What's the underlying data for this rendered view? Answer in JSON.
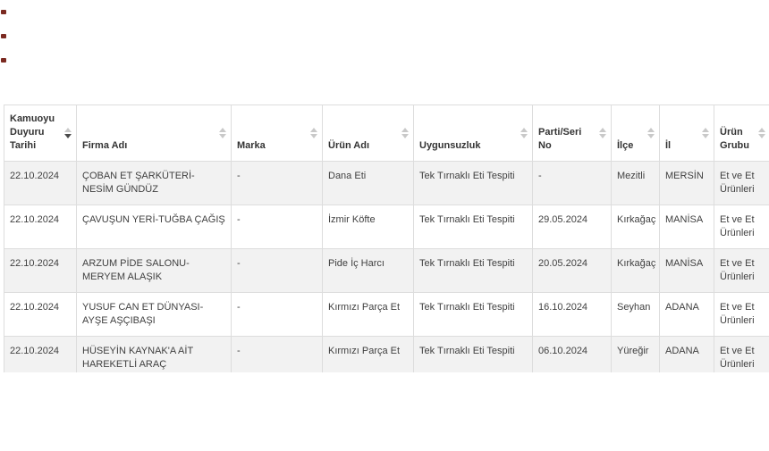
{
  "colors": {
    "header_text": "#333333",
    "cell_text": "#404040",
    "border": "#dddddd",
    "zebra_odd_row": "#f2f2f2",
    "zebra_even_row": "#ffffff",
    "sort_icon_inactive": "#c9c9c9",
    "sort_icon_active": "#4a4a4a",
    "edge_mark": "#7b2a21"
  },
  "left_edge_marks": {
    "count": 3
  },
  "table": {
    "columns": [
      {
        "label": "Kamuoyu Duyuru Tarihi",
        "sort_state": "descending"
      },
      {
        "label": "Firma Adı",
        "sort_state": "none"
      },
      {
        "label": "Marka",
        "sort_state": "none"
      },
      {
        "label": "Ürün Adı",
        "sort_state": "none"
      },
      {
        "label": "Uygunsuzluk",
        "sort_state": "none"
      },
      {
        "label": "Parti/Seri No",
        "sort_state": "none"
      },
      {
        "label": "İlçe",
        "sort_state": "none"
      },
      {
        "label": "İl",
        "sort_state": "none"
      },
      {
        "label": "Ürün Grubu",
        "sort_state": "none"
      }
    ],
    "rows": [
      [
        "22.10.2024",
        "ÇOBAN ET ŞARKÜTERİ-NESİM GÜNDÜZ",
        "-",
        "Dana Eti",
        "Tek Tırnaklı Eti Tespiti",
        "-",
        "Mezitli",
        "MERSİN",
        "Et ve Et Ürünleri"
      ],
      [
        "22.10.2024",
        "ÇAVUŞUN YERİ-TUĞBA ÇAĞIŞ",
        "-",
        "İzmir Köfte",
        "Tek Tırnaklı Eti Tespiti",
        "29.05.2024",
        "Kırkağaç",
        "MANİSA",
        "Et ve Et Ürünleri"
      ],
      [
        "22.10.2024",
        "ARZUM PİDE SALONU-MERYEM ALAŞIK",
        "-",
        "Pide İç Harcı",
        "Tek Tırnaklı Eti Tespiti",
        "20.05.2024",
        "Kırkağaç",
        "MANİSA",
        "Et ve Et Ürünleri"
      ],
      [
        "22.10.2024",
        "YUSUF CAN ET DÜNYASI-AYŞE AŞÇIBAŞI",
        "-",
        "Kırmızı Parça Et",
        "Tek Tırnaklı Eti Tespiti",
        "16.10.2024",
        "Seyhan",
        "ADANA",
        "Et ve Et Ürünleri"
      ],
      [
        "22.10.2024",
        "HÜSEYİN KAYNAK'A AİT HAREKETLİ ARAÇ",
        "-",
        "Kırmızı Parça Et",
        "Tek Tırnaklı Eti Tespiti",
        "06.10.2024",
        "Yüreğir",
        "ADANA",
        "Et ve Et Ürünleri"
      ]
    ]
  }
}
